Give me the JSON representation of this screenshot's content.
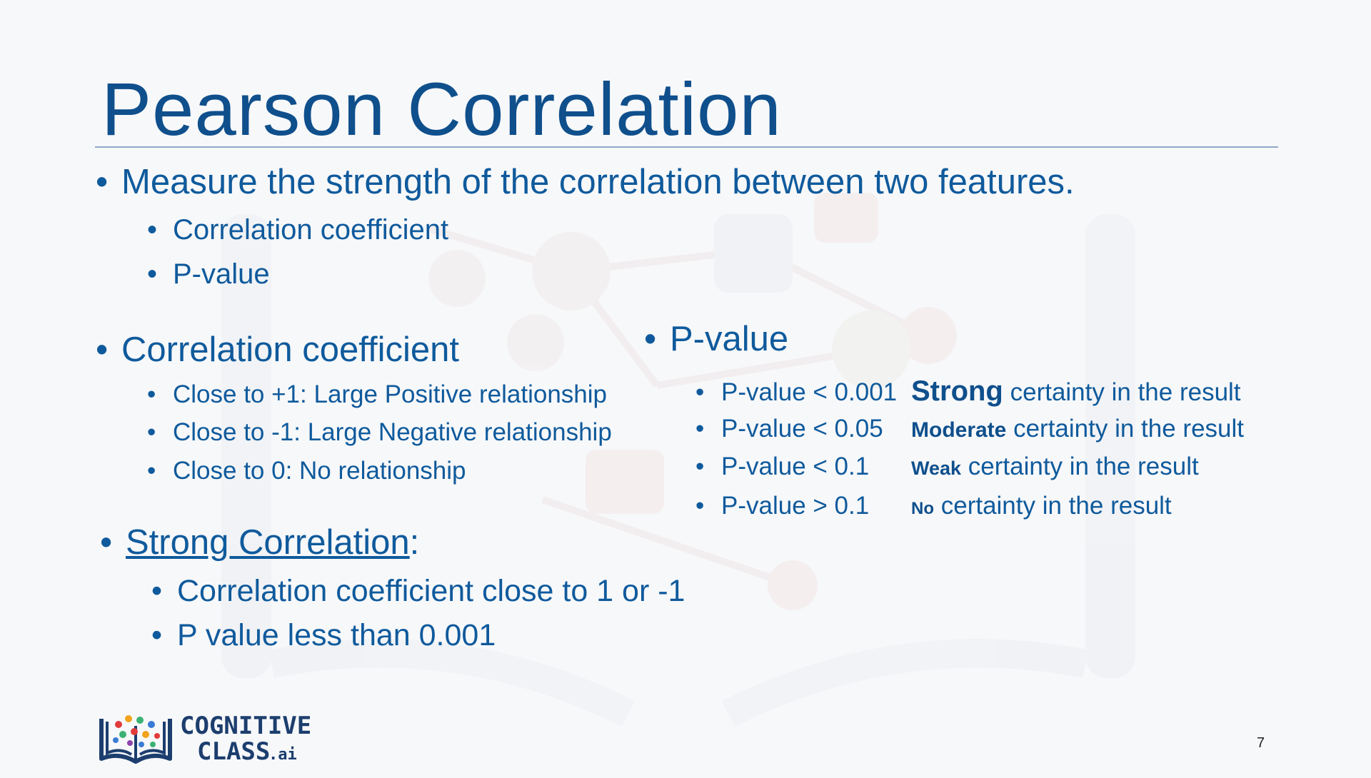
{
  "title": "Pearson Correlation",
  "section1": {
    "heading": "Measure the strength of the correlation between two features.",
    "items": [
      "Correlation coefficient",
      "P-value"
    ]
  },
  "section2": {
    "heading": "Correlation coefficient",
    "items": [
      "Close to +1: Large Positive relationship",
      "Close to -1: Large Negative relationship",
      "Close to  0: No relationship"
    ]
  },
  "section3": {
    "heading_link": "Strong Correlation",
    "heading_suffix": ":",
    "items": [
      "Correlation coefficient close to 1 or -1",
      "P value less than 0.001"
    ]
  },
  "section4": {
    "heading": "P-value",
    "rows": [
      {
        "condition": "P-value < 0.001",
        "level": "Strong",
        "rest": " certainty in the result"
      },
      {
        "condition": "P-value < 0.05",
        "level": "Moderate",
        "rest": " certainty in the result"
      },
      {
        "condition": "P-value < 0.1",
        "level": "Weak",
        "rest": " certainty in the result"
      },
      {
        "condition": "P-value > 0.1",
        "level": "No",
        "rest": " certainty in the result"
      }
    ]
  },
  "logo": {
    "line1": "COGNITIVE",
    "line2": "CLASS",
    "suffix": ".ai",
    "icon": "book-network-icon"
  },
  "page_number": "7",
  "bullet_char": "•",
  "colors": {
    "text": "#0f5a9c",
    "title": "#0f4f8c",
    "rule": "#8ea9c8",
    "background": "#f7f8fa"
  }
}
